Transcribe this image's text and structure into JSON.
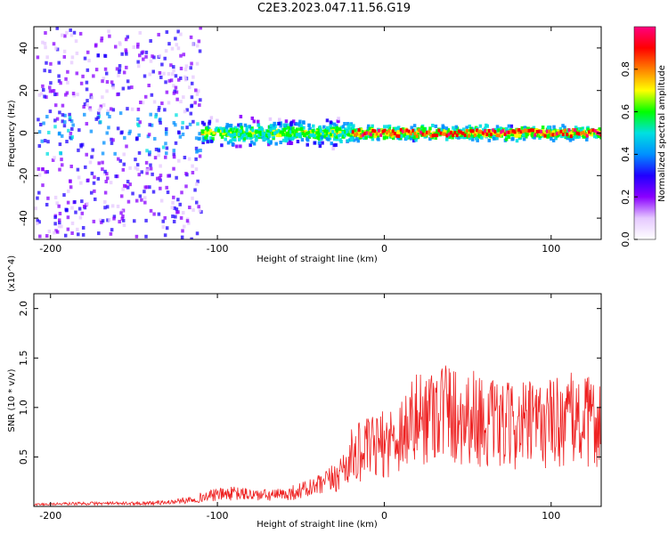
{
  "title": "C2E3.2023.047.11.56.G19",
  "chart_data": [
    {
      "type": "heatmap",
      "xlabel": "Height of straight line (km)",
      "ylabel": "Frequency (Hz)",
      "xlim": [
        -210,
        130
      ],
      "ylim": [
        -50,
        50
      ],
      "xticks": [
        -200,
        -100,
        0,
        100
      ],
      "yticks": [
        40,
        20,
        0,
        -20,
        -40
      ],
      "colorbar": {
        "label": "Normalized spectral amplitude",
        "range": [
          0,
          1
        ],
        "ticks": [
          "0.0",
          "0.2",
          "0.4",
          "0.6",
          "0.8"
        ],
        "colormap": [
          "#ffffff",
          "#e5c8ff",
          "#8a00ff",
          "#2000ff",
          "#0090ff",
          "#00e0e0",
          "#00ff00",
          "#ffff00",
          "#ff8000",
          "#ff0000",
          "#ff0080"
        ]
      }
    },
    {
      "type": "line",
      "xlabel": "Height of straight line (km)",
      "ylabel": "SNR (10 * v/v)",
      "exponent_label": "(x10^4)",
      "xlim": [
        -210,
        130
      ],
      "ylim": [
        0,
        2.15
      ],
      "xticks": [
        -200,
        -100,
        0,
        100
      ],
      "yticks": [
        "2.0",
        "1.5",
        "1.0",
        "0.5"
      ],
      "color": "#ee2222",
      "series": [
        {
          "x": [
            -210,
            -180,
            -150,
            -130,
            -120,
            -110,
            -100,
            -90,
            -80,
            -70,
            -60,
            -50,
            -40,
            -30,
            -25,
            -22,
            -20,
            -15,
            -10,
            -5,
            0,
            5,
            10,
            15,
            20,
            25,
            30,
            35,
            40,
            45,
            50,
            55,
            60,
            70,
            80,
            90,
            100,
            110,
            120,
            130
          ],
          "values": [
            0.02,
            0.03,
            0.03,
            0.04,
            0.06,
            0.09,
            0.12,
            0.13,
            0.12,
            0.11,
            0.12,
            0.16,
            0.2,
            0.28,
            0.38,
            0.45,
            0.5,
            0.55,
            0.58,
            0.6,
            0.63,
            0.68,
            0.75,
            0.82,
            0.88,
            0.92,
            1.0,
            1.0,
            0.95,
            0.9,
            0.92,
            0.9,
            0.85,
            0.8,
            0.82,
            0.82,
            0.85,
            0.88,
            0.85,
            0.85
          ]
        }
      ]
    }
  ]
}
